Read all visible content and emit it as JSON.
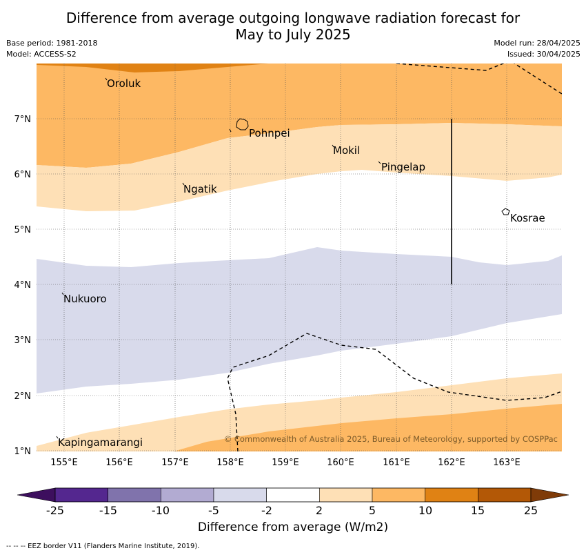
{
  "header": {
    "title_line1": "Difference from average outgoing longwave radiation forecast for",
    "title_line2": "May to July 2025",
    "base_period": "Base period: 1981-2018",
    "model": "Model: ACCESS-S2",
    "model_run": "Model run: 28/04/2025",
    "issued": "Issued: 30/04/2025"
  },
  "map": {
    "lat_labels": [
      "7°N",
      "6°N",
      "5°N",
      "4°N",
      "3°N",
      "2°N",
      "1°N"
    ],
    "lon_labels": [
      "155°E",
      "156°E",
      "157°E",
      "158°E",
      "159°E",
      "160°E",
      "161°E",
      "162°E",
      "163°E"
    ],
    "places": [
      "Oroluk",
      "Pohnpei",
      "Mokil",
      "Pingelap",
      "Ngatik",
      "Kosrae",
      "Nukuoro",
      "Kapingamarangi"
    ],
    "copyright": "© Commonwealth of Australia 2025, Bureau of Meteorology, supported by COSPPac"
  },
  "colorbar": {
    "ticks": [
      "-25",
      "-15",
      "-10",
      "-5",
      "-2",
      "2",
      "5",
      "10",
      "15",
      "25"
    ],
    "colors": [
      "#3d0f5e",
      "#54278f",
      "#8073ac",
      "#b2abd2",
      "#d8daeb",
      "#ffffff",
      "#fee0b6",
      "#fdb863",
      "#e08214",
      "#b35806",
      "#7f3b08"
    ],
    "label": "Difference from average (W/m2)"
  },
  "footnote": "--  --  -- EEZ border V11 (Flanders Marine Institute, 2019)."
}
